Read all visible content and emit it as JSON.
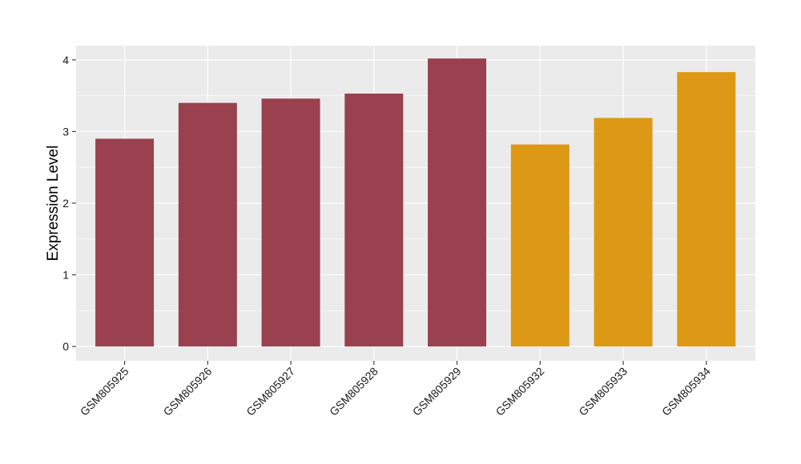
{
  "chart_data": {
    "type": "bar",
    "title": "",
    "xlabel": "",
    "ylabel": "Expression Level",
    "categories": [
      "GSM805925",
      "GSM805926",
      "GSM805927",
      "GSM805928",
      "GSM805929",
      "GSM805932",
      "GSM805933",
      "GSM805934"
    ],
    "values": [
      2.9,
      3.4,
      3.46,
      3.53,
      4.02,
      2.82,
      3.19,
      3.83
    ],
    "bar_colors": [
      "#99414F",
      "#99414F",
      "#99414F",
      "#99414F",
      "#99414F",
      "#DD9915",
      "#DD9915",
      "#DD9915"
    ],
    "ylim": [
      -0.2,
      4.2
    ],
    "yticks": [
      0,
      1,
      2,
      3,
      4
    ],
    "ytick_labels": [
      "0",
      "1",
      "2",
      "3",
      "4"
    ],
    "grid": true,
    "panel_background": "#EBEBEB",
    "grid_color": "#FFFFFF"
  }
}
